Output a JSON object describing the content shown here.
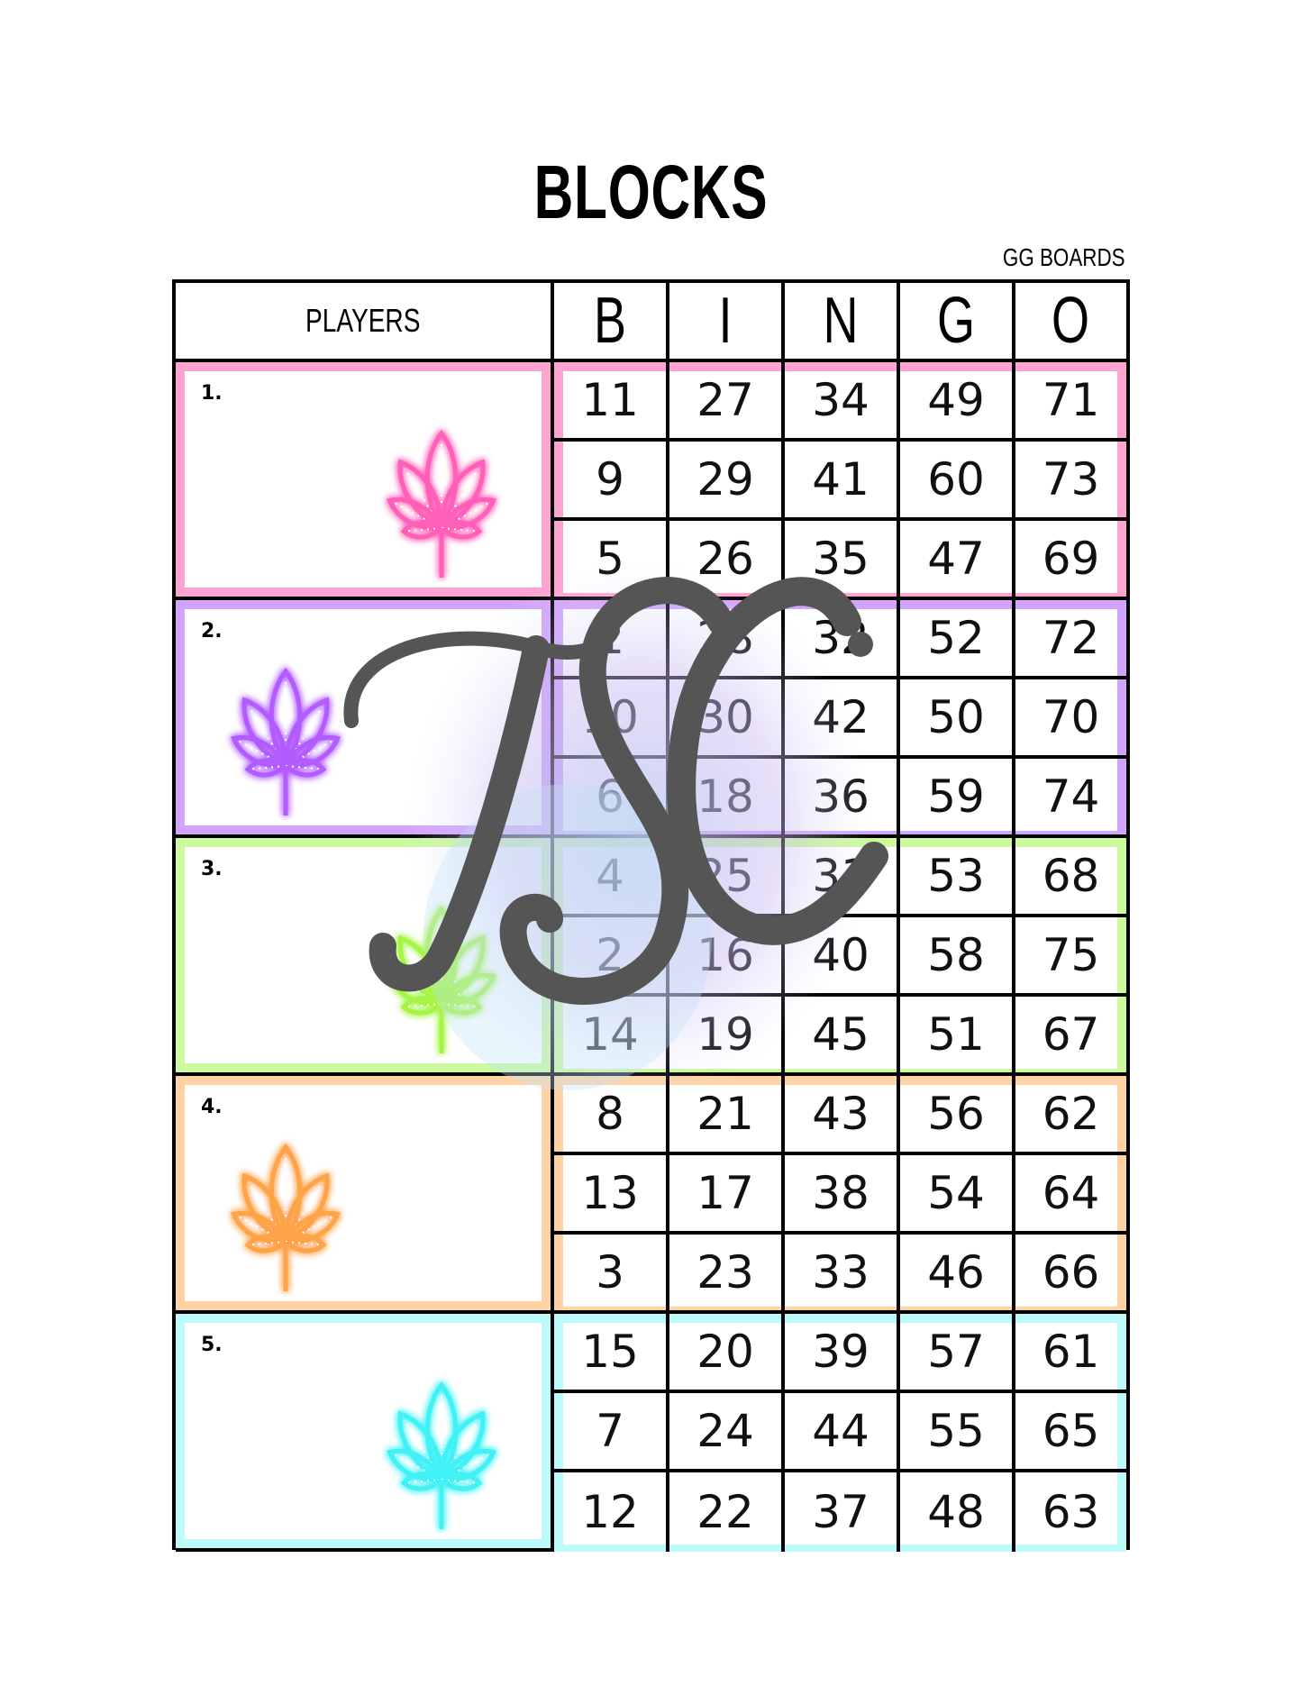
{
  "title": "BLOCKS",
  "subtitle": "GG BOARDS",
  "header": {
    "players_label": "PLAYERS",
    "letters": [
      "B",
      "I",
      "N",
      "G",
      "O"
    ]
  },
  "blocks": [
    {
      "label": "1.",
      "color": "#ffa3d2",
      "leaf_color": "#ff5fb8",
      "leaf_side": "right",
      "rows": [
        [
          11,
          27,
          34,
          49,
          71
        ],
        [
          9,
          29,
          41,
          60,
          73
        ],
        [
          5,
          26,
          35,
          47,
          69
        ]
      ]
    },
    {
      "label": "2.",
      "color": "#d3a4fb",
      "leaf_color": "#b25cff",
      "leaf_side": "left",
      "rows": [
        [
          1,
          28,
          32,
          52,
          72
        ],
        [
          10,
          30,
          42,
          50,
          70
        ],
        [
          6,
          18,
          36,
          59,
          74
        ]
      ]
    },
    {
      "label": "3.",
      "color": "#ccfa9c",
      "leaf_color": "#a6f545",
      "leaf_side": "right",
      "rows": [
        [
          4,
          25,
          31,
          53,
          68
        ],
        [
          2,
          16,
          40,
          58,
          75
        ],
        [
          14,
          19,
          45,
          51,
          67
        ]
      ]
    },
    {
      "label": "4.",
      "color": "#ffd3a6",
      "leaf_color": "#ffa34a",
      "leaf_side": "left",
      "rows": [
        [
          8,
          21,
          43,
          56,
          62
        ],
        [
          13,
          17,
          38,
          54,
          64
        ],
        [
          3,
          23,
          33,
          46,
          66
        ]
      ]
    },
    {
      "label": "5.",
      "color": "#bdfafc",
      "leaf_color": "#3ff2f5",
      "leaf_side": "right",
      "rows": [
        [
          15,
          20,
          39,
          57,
          61
        ],
        [
          7,
          24,
          44,
          55,
          65
        ],
        [
          12,
          22,
          37,
          48,
          63
        ]
      ]
    }
  ],
  "watermark": {
    "text": "TSC",
    "color": "#555555"
  }
}
